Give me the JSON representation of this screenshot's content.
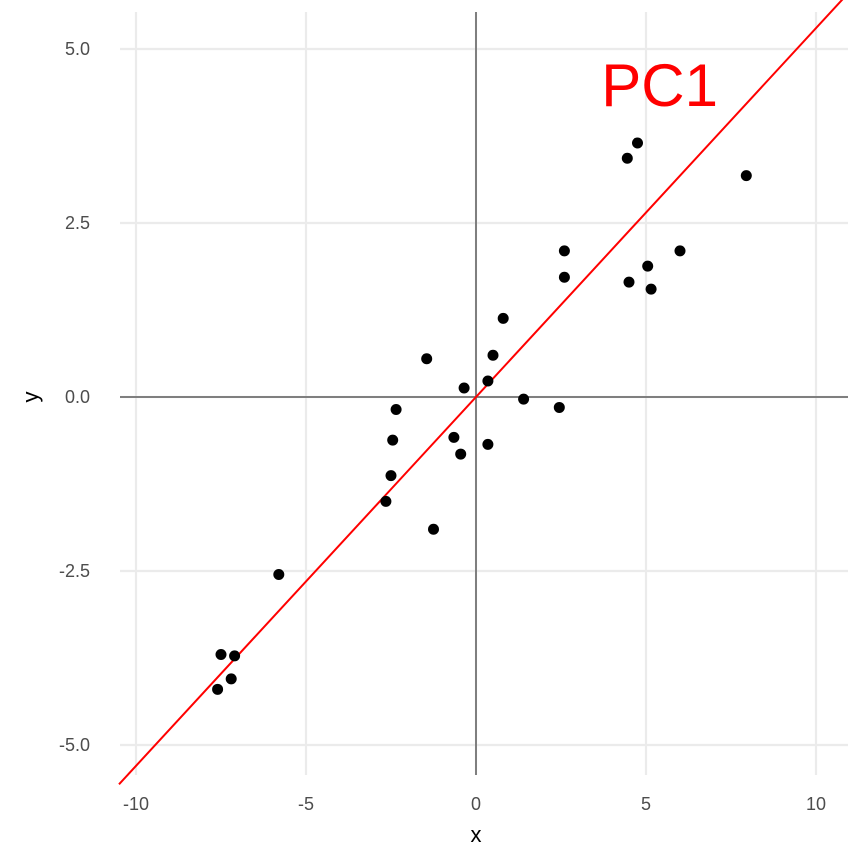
{
  "chart_data": {
    "type": "scatter",
    "title": "",
    "xlabel": "x",
    "ylabel": "y",
    "xlim": [
      -10.5,
      10.9
    ],
    "ylim": [
      -5.5,
      5.5
    ],
    "x_ticks": [
      -10,
      -5,
      0,
      5,
      10
    ],
    "x_tick_labels": [
      "-10",
      "-5",
      "0",
      "5",
      "10"
    ],
    "y_ticks": [
      -5,
      -2.5,
      0,
      2.5,
      5
    ],
    "y_tick_labels": [
      "-5.0",
      "-2.5",
      "0.0",
      "2.5",
      "5.0"
    ],
    "grid": true,
    "reference_lines": {
      "x": 0,
      "y": 0,
      "color": "#7f7f7f"
    },
    "points_color": "#000000",
    "points": [
      {
        "x": -7.6,
        "y": -4.2
      },
      {
        "x": -7.5,
        "y": -3.7
      },
      {
        "x": -7.2,
        "y": -4.05
      },
      {
        "x": -7.1,
        "y": -3.72
      },
      {
        "x": -5.8,
        "y": -2.55
      },
      {
        "x": -2.65,
        "y": -1.5
      },
      {
        "x": -2.5,
        "y": -1.13
      },
      {
        "x": -2.45,
        "y": -0.62
      },
      {
        "x": -2.35,
        "y": -0.18
      },
      {
        "x": -1.45,
        "y": 0.55
      },
      {
        "x": -1.25,
        "y": -1.9
      },
      {
        "x": -0.65,
        "y": -0.58
      },
      {
        "x": -0.45,
        "y": -0.82
      },
      {
        "x": -0.35,
        "y": 0.13
      },
      {
        "x": 0.35,
        "y": 0.23
      },
      {
        "x": 0.35,
        "y": -0.68
      },
      {
        "x": 0.5,
        "y": 0.6
      },
      {
        "x": 0.8,
        "y": 1.13
      },
      {
        "x": 1.4,
        "y": -0.03
      },
      {
        "x": 2.45,
        "y": -0.15
      },
      {
        "x": 2.6,
        "y": 2.1
      },
      {
        "x": 2.6,
        "y": 1.72
      },
      {
        "x": 4.45,
        "y": 3.43
      },
      {
        "x": 4.5,
        "y": 1.65
      },
      {
        "x": 4.75,
        "y": 3.65
      },
      {
        "x": 5.05,
        "y": 1.88
      },
      {
        "x": 5.15,
        "y": 1.55
      },
      {
        "x": 6.0,
        "y": 2.1
      },
      {
        "x": 7.95,
        "y": 3.18
      }
    ],
    "line": {
      "label": "PC1",
      "color": "#ff0000",
      "slope": 0.53,
      "intercept": 0.0,
      "label_position": {
        "x": 5.4,
        "y": 4.5
      }
    }
  }
}
